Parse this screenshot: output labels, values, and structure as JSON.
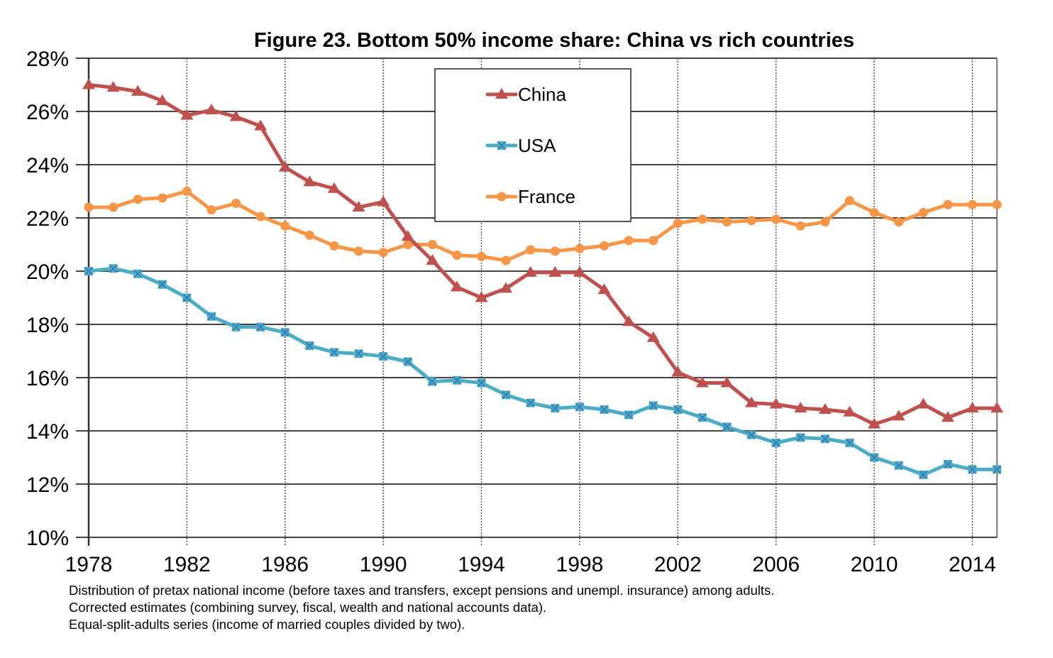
{
  "chart_data": {
    "type": "line",
    "title": "Figure 23. Bottom 50% income share: China vs rich countries",
    "xlabel": "",
    "ylabel": "",
    "x": [
      1978,
      1979,
      1980,
      1981,
      1982,
      1983,
      1984,
      1985,
      1986,
      1987,
      1988,
      1989,
      1990,
      1991,
      1992,
      1993,
      1994,
      1995,
      1996,
      1997,
      1998,
      1999,
      2000,
      2001,
      2002,
      2003,
      2004,
      2005,
      2006,
      2007,
      2008,
      2009,
      2010,
      2011,
      2012,
      2013,
      2014,
      2015
    ],
    "xlim": [
      1978,
      2015
    ],
    "ylim": [
      10,
      28
    ],
    "x_ticks": [
      1978,
      1982,
      1986,
      1990,
      1994,
      1998,
      2002,
      2006,
      2010,
      2014
    ],
    "x_tick_labels": [
      "1978",
      "1982",
      "1986",
      "1990",
      "1994",
      "1998",
      "2002",
      "2006",
      "2010",
      "2014"
    ],
    "y_ticks": [
      10,
      12,
      14,
      16,
      18,
      20,
      22,
      24,
      26,
      28
    ],
    "y_tick_labels": [
      "10%",
      "12%",
      "14%",
      "16%",
      "18%",
      "20%",
      "22%",
      "24%",
      "26%",
      "28%"
    ],
    "grid": "horizontal solid, vertical dotted every 4 years",
    "legend_position": "top-center",
    "series": [
      {
        "name": "China",
        "color": "#C0504D",
        "marker": "triangle",
        "values": [
          27.0,
          26.9,
          26.75,
          26.4,
          25.85,
          26.05,
          25.8,
          25.45,
          23.9,
          23.35,
          23.1,
          22.4,
          22.6,
          21.3,
          20.4,
          19.4,
          19.0,
          19.35,
          19.95,
          19.95,
          19.95,
          19.3,
          18.1,
          17.5,
          16.2,
          15.8,
          15.8,
          15.05,
          15.0,
          14.85,
          14.8,
          14.7,
          14.25,
          14.55,
          15.0,
          14.5,
          14.85,
          14.85
        ]
      },
      {
        "name": "USA",
        "color": "#4BACC6",
        "marker": "x-square",
        "values": [
          20.0,
          20.1,
          19.9,
          19.5,
          19.0,
          18.3,
          17.9,
          17.9,
          17.7,
          17.2,
          16.95,
          16.9,
          16.8,
          16.6,
          15.85,
          15.9,
          15.8,
          15.35,
          15.05,
          14.85,
          14.9,
          14.8,
          14.6,
          14.95,
          14.8,
          14.5,
          14.15,
          13.85,
          13.55,
          13.75,
          13.7,
          13.55,
          13.0,
          12.7,
          12.35,
          12.75,
          12.55,
          12.55
        ]
      },
      {
        "name": "France",
        "color": "#F79646",
        "marker": "circle",
        "values": [
          22.4,
          22.4,
          22.7,
          22.75,
          23.0,
          22.3,
          22.55,
          22.05,
          21.7,
          21.35,
          20.95,
          20.75,
          20.7,
          21.0,
          21.0,
          20.6,
          20.55,
          20.4,
          20.8,
          20.75,
          20.85,
          20.95,
          21.15,
          21.15,
          21.8,
          21.95,
          21.85,
          21.9,
          21.95,
          21.7,
          21.85,
          22.65,
          22.2,
          21.85,
          22.2,
          22.5,
          22.5,
          22.5
        ]
      }
    ],
    "notes": [
      "Distribution of pretax national income (before taxes and transfers, except pensions and unempl. insurance) among adults.",
      "Corrected estimates (combining survey, fiscal, wealth and national accounts data).",
      "Equal-split-adults series (income of married couples divided by two)."
    ]
  }
}
